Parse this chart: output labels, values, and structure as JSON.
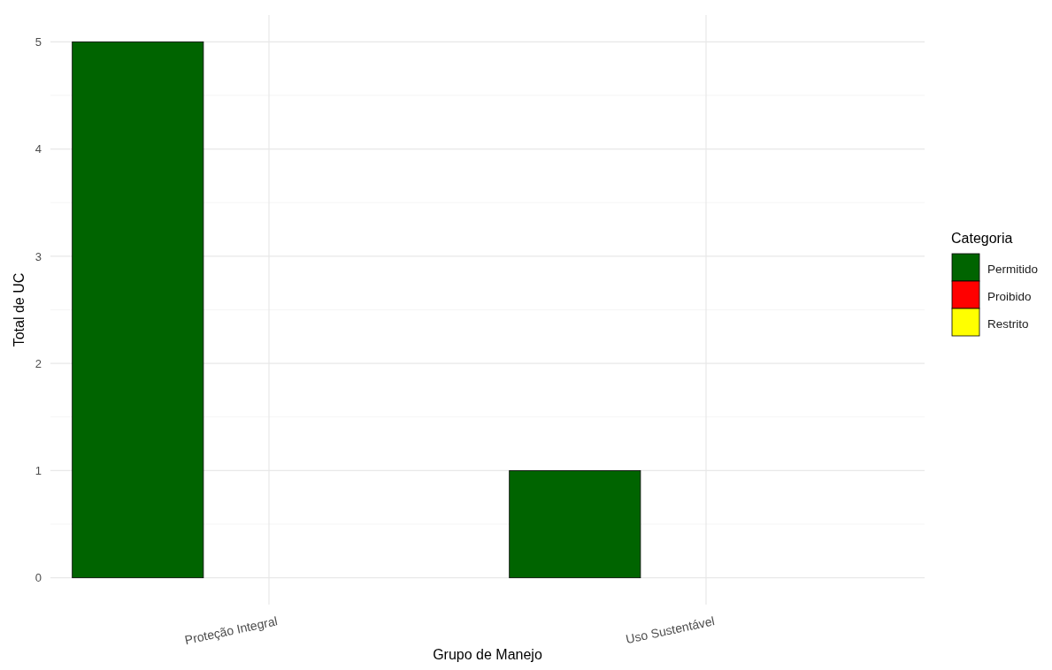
{
  "chart_data": {
    "type": "bar",
    "xlabel": "Grupo de Manejo",
    "ylabel": "Total de UC",
    "legend_title": "Categoria",
    "categories": [
      "Proteção Integral",
      "Uso Sustentável"
    ],
    "series": [
      {
        "name": "Permitido",
        "color": "#006400",
        "values": [
          5,
          1
        ]
      },
      {
        "name": "Proibido",
        "color": "#ff0000",
        "values": [
          0,
          0
        ]
      },
      {
        "name": "Restrito",
        "color": "#ffff00",
        "values": [
          0,
          0
        ]
      }
    ],
    "ylim": [
      -0.25,
      5.25
    ],
    "yticks": [
      0,
      1,
      2,
      3,
      4,
      5
    ],
    "grid": true,
    "legend": "right"
  }
}
